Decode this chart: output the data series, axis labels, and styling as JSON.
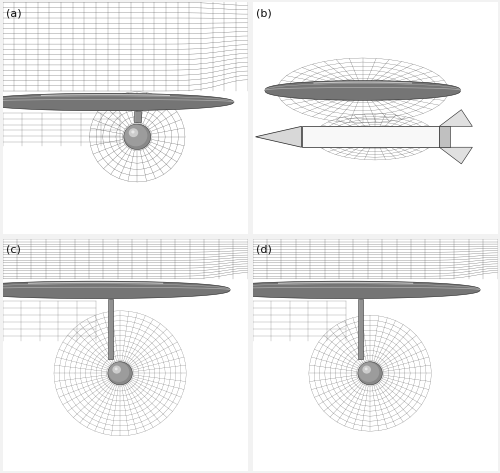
{
  "figure_width": 5.0,
  "figure_height": 4.73,
  "dpi": 100,
  "panels": [
    "(a)",
    "(b)",
    "(c)",
    "(d)"
  ],
  "bg_color": "#f2f2f2",
  "panel_bg": "#ffffff",
  "label_fontsize": 8,
  "label_color": "#111111",
  "mesh_color": "#333333",
  "mesh_lw": 0.18,
  "structured_lw": 0.22,
  "face_light": 0.92,
  "face_mid": 0.78,
  "face_dark": 0.62
}
